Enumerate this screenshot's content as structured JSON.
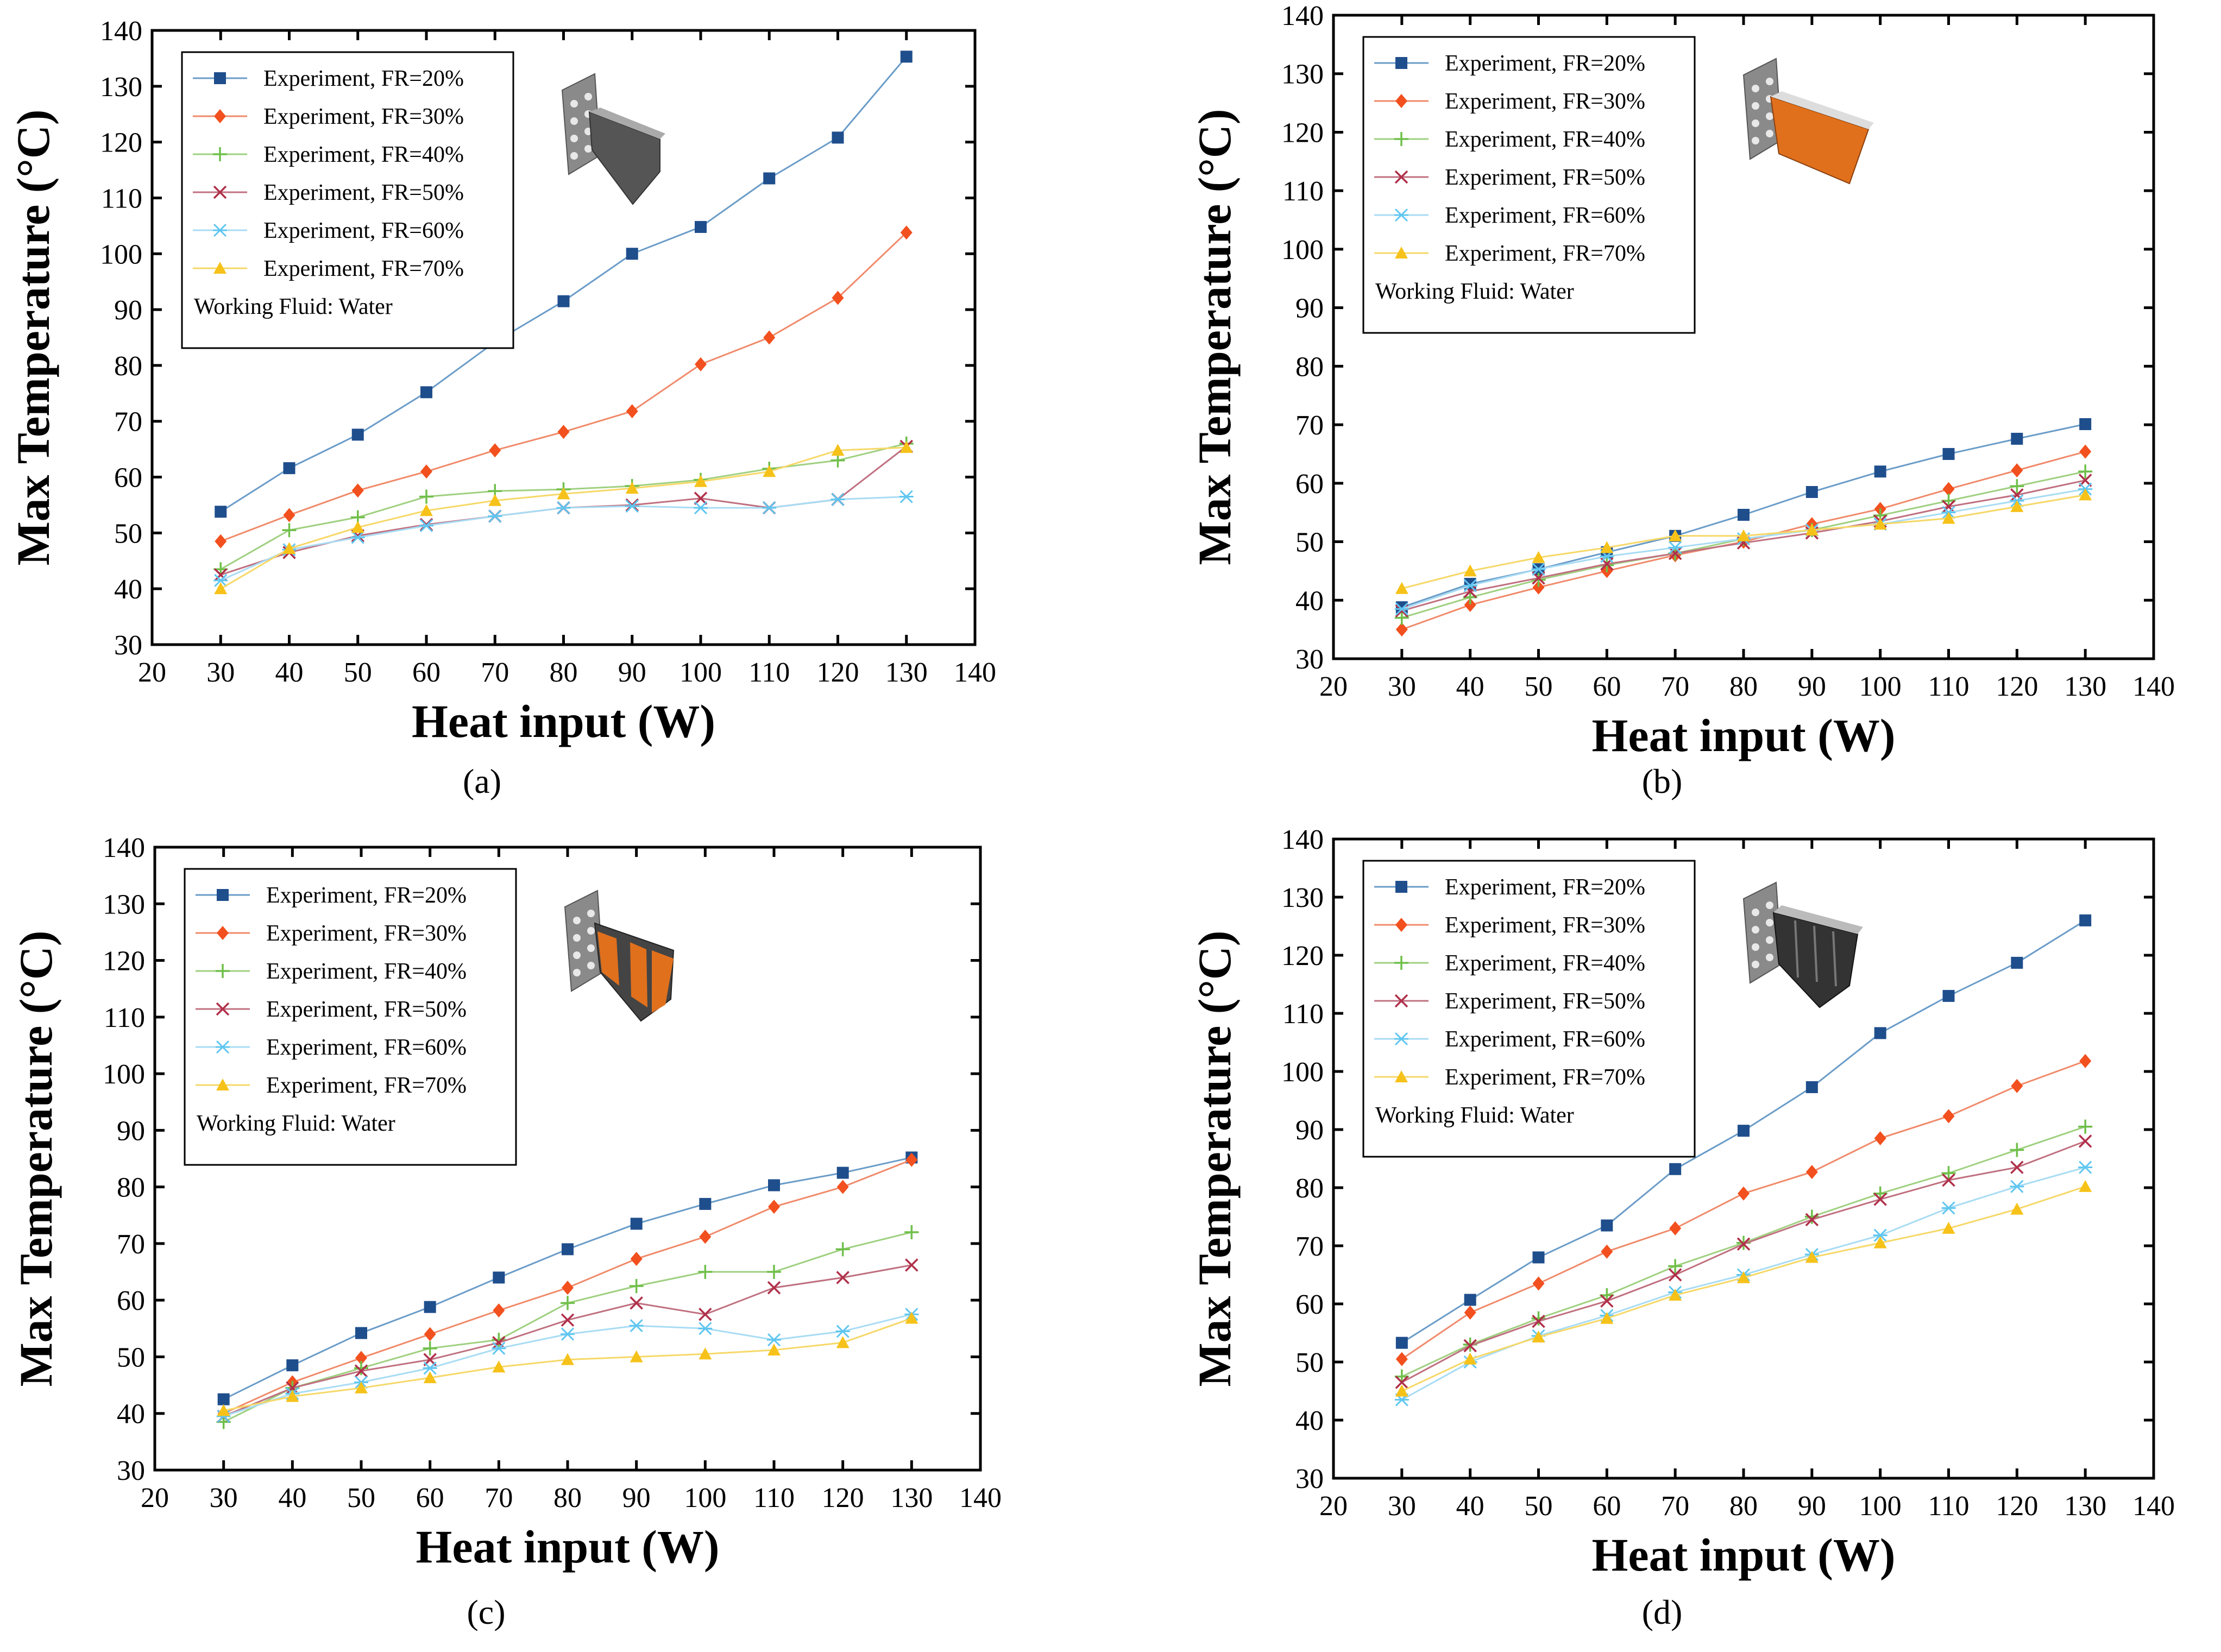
{
  "colors": {
    "FR20": "#1f4e8c",
    "FR30": "#f2501e",
    "FR40": "#6fbf4a",
    "FR50": "#b0304a",
    "FR60": "#5fc6f0",
    "FR70": "#f6c21a",
    "line20": "#6a9cc8",
    "line30": "#f08a6a",
    "line40": "#9fd080",
    "line50": "#c07080",
    "line60": "#a8dcf4",
    "line70": "#f6d868",
    "module_gray": "#555555",
    "module_orange": "#e0701c"
  },
  "chart_data": [
    {
      "type": "line",
      "panel": "(a)",
      "xlabel": "Heat input (W)",
      "ylabel": "Max Temperature (°C)",
      "xlim": [
        20,
        140
      ],
      "ylim": [
        30,
        140
      ],
      "xticks": [
        20,
        30,
        40,
        50,
        60,
        70,
        80,
        90,
        100,
        110,
        120,
        130,
        140
      ],
      "yticks": [
        30,
        40,
        50,
        60,
        70,
        80,
        90,
        100,
        110,
        120,
        130,
        140
      ],
      "legend_note": "Working Fluid: Water",
      "x": [
        30,
        40,
        50,
        60,
        70,
        80,
        90,
        100,
        110,
        120,
        130
      ],
      "series": [
        {
          "name": "Experiment, FR=20%",
          "marker": "square",
          "values": [
            53.8,
            61.6,
            67.6,
            75.2,
            84.2,
            91.5,
            100.0,
            104.8,
            113.5,
            120.8,
            135.3
          ]
        },
        {
          "name": "Experiment, FR=30%",
          "marker": "diamond",
          "values": [
            48.5,
            53.2,
            57.6,
            61.0,
            64.8,
            68.1,
            71.8,
            80.2,
            85.0,
            92.1,
            103.8
          ]
        },
        {
          "name": "Experiment, FR=40%",
          "marker": "plus",
          "values": [
            43.5,
            50.5,
            52.8,
            56.5,
            57.5,
            57.8,
            58.4,
            59.5,
            61.5,
            63.0,
            66.0
          ]
        },
        {
          "name": "Experiment, FR=50%",
          "marker": "x",
          "values": [
            42.5,
            46.5,
            49.5,
            51.5,
            53.0,
            54.5,
            55.0,
            56.2,
            54.5,
            56.0,
            65.5
          ]
        },
        {
          "name": "Experiment, FR=60%",
          "marker": "asterisk",
          "values": [
            41.5,
            47.0,
            49.2,
            51.3,
            53.0,
            54.5,
            54.8,
            54.5,
            54.5,
            56.0,
            56.5
          ]
        },
        {
          "name": "Experiment, FR=70%",
          "marker": "triangle",
          "values": [
            40.0,
            47.2,
            51.0,
            54.0,
            55.8,
            57.0,
            58.0,
            59.2,
            61.0,
            64.8,
            65.3
          ]
        }
      ]
    },
    {
      "type": "line",
      "panel": "(b)",
      "xlabel": "Heat input (W)",
      "ylabel": "Max Temperature (°C)",
      "xlim": [
        20,
        140
      ],
      "ylim": [
        30,
        140
      ],
      "xticks": [
        20,
        30,
        40,
        50,
        60,
        70,
        80,
        90,
        100,
        110,
        120,
        130,
        140
      ],
      "yticks": [
        30,
        40,
        50,
        60,
        70,
        80,
        90,
        100,
        110,
        120,
        130,
        140
      ],
      "legend_note": "Working Fluid: Water",
      "x": [
        30,
        40,
        50,
        60,
        70,
        80,
        90,
        100,
        110,
        120,
        130
      ],
      "series": [
        {
          "name": "Experiment, FR=20%",
          "marker": "square",
          "values": [
            38.8,
            42.8,
            45.3,
            48.2,
            51.0,
            54.6,
            58.5,
            62.0,
            65.0,
            67.6,
            70.1
          ]
        },
        {
          "name": "Experiment, FR=30%",
          "marker": "diamond",
          "values": [
            35.0,
            39.2,
            42.2,
            45.0,
            47.7,
            50.0,
            53.0,
            55.6,
            59.0,
            62.2,
            65.4
          ]
        },
        {
          "name": "Experiment, FR=40%",
          "marker": "plus",
          "values": [
            37.0,
            40.5,
            43.5,
            46.0,
            48.0,
            50.5,
            52.0,
            54.5,
            57.0,
            59.5,
            62.0
          ]
        },
        {
          "name": "Experiment, FR=50%",
          "marker": "x",
          "values": [
            38.2,
            41.5,
            43.8,
            46.2,
            48.0,
            49.8,
            51.5,
            53.5,
            56.0,
            58.0,
            60.5
          ]
        },
        {
          "name": "Experiment, FR=60%",
          "marker": "asterisk",
          "values": [
            38.5,
            42.5,
            45.3,
            47.5,
            49.0,
            50.5,
            52.0,
            53.0,
            55.0,
            57.0,
            59.0
          ]
        },
        {
          "name": "Experiment, FR=70%",
          "marker": "triangle",
          "values": [
            42.0,
            45.0,
            47.3,
            49.0,
            51.0,
            51.0,
            52.0,
            53.0,
            54.0,
            56.0,
            58.0
          ]
        }
      ]
    },
    {
      "type": "line",
      "panel": "(c)",
      "xlabel": "Heat input (W)",
      "ylabel": "Max Temperature (°C)",
      "xlim": [
        20,
        140
      ],
      "ylim": [
        30,
        140
      ],
      "xticks": [
        20,
        30,
        40,
        50,
        60,
        70,
        80,
        90,
        100,
        110,
        120,
        130,
        140
      ],
      "yticks": [
        30,
        40,
        50,
        60,
        70,
        80,
        90,
        100,
        110,
        120,
        130,
        140
      ],
      "legend_note": "Working Fluid: Water",
      "x": [
        30,
        40,
        50,
        60,
        70,
        80,
        90,
        100,
        110,
        120,
        130
      ],
      "series": [
        {
          "name": "Experiment, FR=20%",
          "marker": "square",
          "values": [
            42.5,
            48.5,
            54.2,
            58.8,
            64.0,
            69.0,
            73.5,
            77.0,
            80.3,
            82.5,
            85.2
          ]
        },
        {
          "name": "Experiment, FR=30%",
          "marker": "diamond",
          "values": [
            40.0,
            45.5,
            49.8,
            54.0,
            58.2,
            62.2,
            67.3,
            71.2,
            76.5,
            80.0,
            84.8
          ]
        },
        {
          "name": "Experiment, FR=40%",
          "marker": "plus",
          "values": [
            38.5,
            44.5,
            48.0,
            51.5,
            53.0,
            59.5,
            62.5,
            65.0,
            65.0,
            69.0,
            72.0
          ]
        },
        {
          "name": "Experiment, FR=50%",
          "marker": "x",
          "values": [
            39.5,
            44.5,
            47.5,
            49.5,
            52.5,
            56.5,
            59.5,
            57.5,
            62.2,
            64.0,
            66.2
          ]
        },
        {
          "name": "Experiment, FR=60%",
          "marker": "asterisk",
          "values": [
            39.5,
            43.5,
            45.5,
            48.0,
            51.5,
            54.0,
            55.5,
            55.0,
            53.0,
            54.5,
            57.5
          ]
        },
        {
          "name": "Experiment, FR=70%",
          "marker": "triangle",
          "values": [
            40.5,
            43.0,
            44.5,
            46.3,
            48.2,
            49.5,
            50.0,
            50.5,
            51.2,
            52.5,
            56.8
          ]
        }
      ]
    },
    {
      "type": "line",
      "panel": "(d)",
      "xlabel": "Heat input (W)",
      "ylabel": "Max Temperature (°C)",
      "xlim": [
        20,
        140
      ],
      "ylim": [
        30,
        140
      ],
      "xticks": [
        20,
        30,
        40,
        50,
        60,
        70,
        80,
        90,
        100,
        110,
        120,
        130,
        140
      ],
      "yticks": [
        30,
        40,
        50,
        60,
        70,
        80,
        90,
        100,
        110,
        120,
        130,
        140
      ],
      "legend_note": "Working Fluid: Water",
      "x": [
        30,
        40,
        50,
        60,
        70,
        80,
        90,
        100,
        110,
        120,
        130
      ],
      "series": [
        {
          "name": "Experiment, FR=20%",
          "marker": "square",
          "values": [
            53.3,
            60.7,
            68.0,
            73.5,
            83.2,
            89.8,
            97.3,
            106.6,
            113.0,
            118.7,
            126.0
          ]
        },
        {
          "name": "Experiment, FR=30%",
          "marker": "diamond",
          "values": [
            50.5,
            58.5,
            63.5,
            69.0,
            73.0,
            79.0,
            82.7,
            88.5,
            92.3,
            97.5,
            101.8
          ]
        },
        {
          "name": "Experiment, FR=40%",
          "marker": "plus",
          "values": [
            47.5,
            53.0,
            57.5,
            61.5,
            66.5,
            70.5,
            75.0,
            79.0,
            82.5,
            86.5,
            90.5
          ]
        },
        {
          "name": "Experiment, FR=50%",
          "marker": "x",
          "values": [
            46.5,
            52.8,
            57.0,
            60.5,
            65.0,
            70.3,
            74.5,
            78.0,
            81.3,
            83.5,
            88.0
          ]
        },
        {
          "name": "Experiment, FR=60%",
          "marker": "asterisk",
          "values": [
            43.5,
            50.0,
            54.5,
            58.0,
            62.0,
            65.0,
            68.5,
            71.8,
            76.5,
            80.2,
            83.5
          ]
        },
        {
          "name": "Experiment, FR=70%",
          "marker": "triangle",
          "values": [
            45.0,
            50.5,
            54.3,
            57.5,
            61.5,
            64.5,
            68.0,
            70.5,
            73.0,
            76.3,
            80.2
          ]
        }
      ]
    }
  ]
}
